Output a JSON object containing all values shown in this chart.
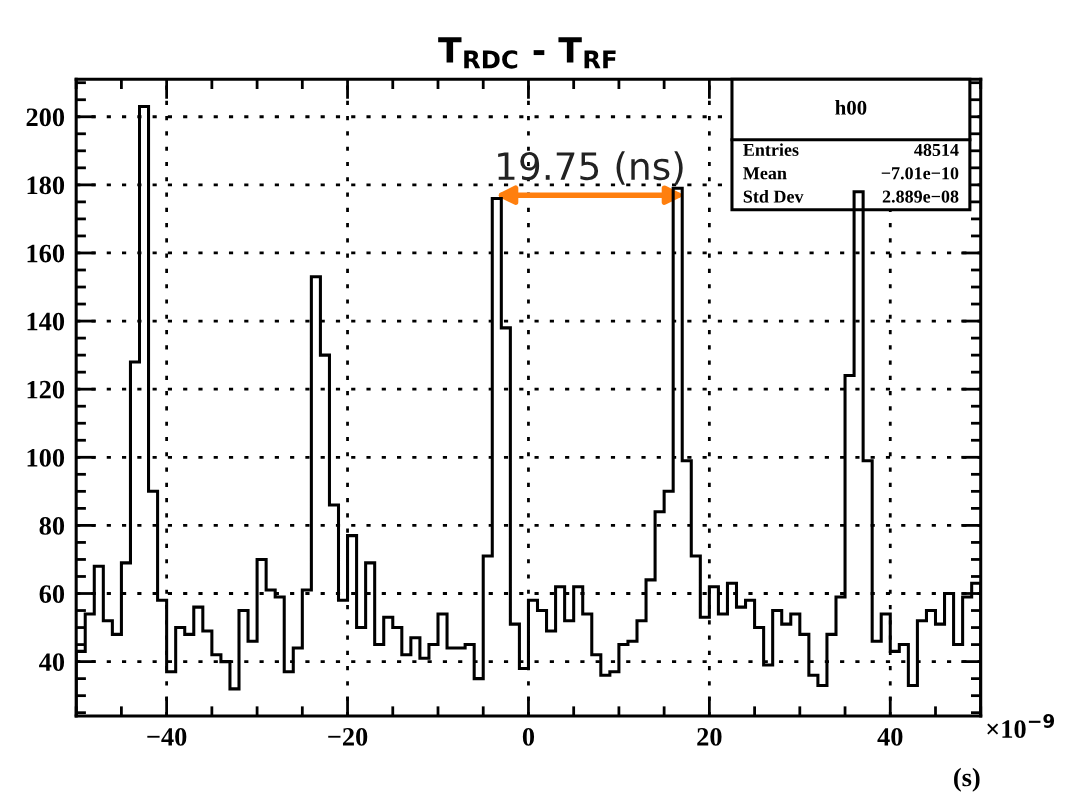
{
  "chart_data": {
    "type": "histogram",
    "title": "T$_{RDC}$ - T$_{RF}$",
    "xlabel": "(s)",
    "bins": [
      -50,
      -49,
      -48,
      -47,
      -46,
      -45,
      -44,
      -43,
      -42,
      -41,
      -40,
      -39,
      -38,
      -37,
      -36,
      -35,
      -34,
      -33,
      -32,
      -31,
      -30,
      -29,
      -28,
      -27,
      -26,
      -25,
      -24,
      -23,
      -22,
      -21,
      -20,
      -19,
      -18,
      -17,
      -16,
      -15,
      -14,
      -13,
      -12,
      -11,
      -10,
      -9,
      -8,
      -7,
      -6,
      -5,
      -4,
      -3,
      -2,
      -1,
      0,
      1,
      2,
      3,
      4,
      5,
      6,
      7,
      8,
      9,
      10,
      11,
      12,
      13,
      14,
      15,
      16,
      17,
      18,
      19,
      20,
      21,
      22,
      23,
      24,
      25,
      26,
      27,
      28,
      29,
      30,
      31,
      32,
      33,
      34,
      35,
      36,
      37,
      38,
      39,
      40,
      41,
      42,
      43,
      44,
      45,
      46,
      47,
      48,
      49,
      50
    ],
    "values": [
      43,
      54,
      68,
      52,
      48,
      69,
      128,
      203,
      90,
      58,
      37,
      50,
      48,
      56,
      49,
      42,
      40,
      32,
      55,
      46,
      70,
      61,
      59,
      37,
      44,
      61,
      153,
      130,
      86,
      58,
      77,
      50,
      69,
      45,
      53,
      50,
      42,
      47,
      41,
      45,
      54,
      44,
      44,
      45,
      35,
      71,
      176,
      138,
      51,
      38,
      58,
      55,
      49,
      62,
      52,
      62,
      54,
      42,
      36,
      37,
      45,
      46,
      52,
      64,
      84,
      90,
      179,
      99,
      71,
      53,
      62,
      54,
      63,
      56,
      58,
      50,
      39,
      55,
      51,
      54,
      48,
      36,
      33,
      48,
      59,
      124,
      178,
      99,
      46,
      54,
      43,
      45,
      33,
      52,
      55,
      51,
      60,
      45,
      59,
      63
    ],
    "color": "#000000",
    "xlim": [
      -50,
      50
    ],
    "ylim": [
      24,
      211
    ],
    "xticks": [
      {
        "value": -40,
        "label": "−40"
      },
      {
        "value": -20,
        "label": "−20"
      },
      0,
      20,
      40
    ],
    "yticks": [
      40,
      60,
      80,
      100,
      120,
      140,
      160,
      180,
      200
    ],
    "grid": true,
    "annotations": [
      "19.75 (ns)",
      "×10$^{−9}$",
      "h00",
      "Entries",
      "48514",
      "Mean",
      "−7.01e−10",
      "Std Dev",
      "2.889e−08"
    ]
  }
}
